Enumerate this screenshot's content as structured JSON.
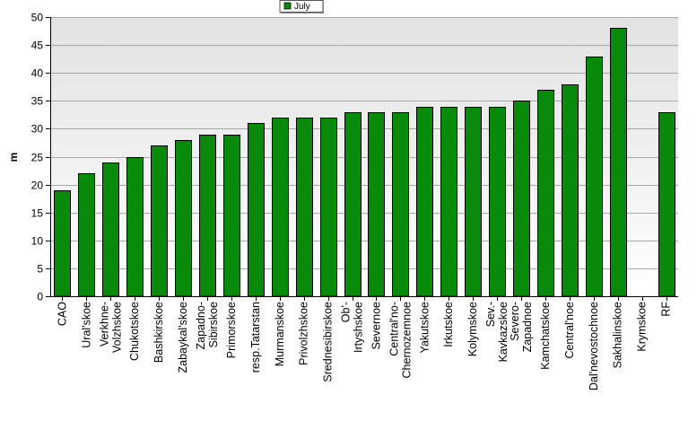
{
  "chart_data": {
    "type": "bar",
    "ylabel": "m",
    "xlabel": "",
    "ylim": [
      0,
      50
    ],
    "yticks": [
      0,
      5,
      10,
      15,
      20,
      25,
      30,
      35,
      40,
      45,
      50
    ],
    "grid": true,
    "legend_position": "top-center",
    "categories": [
      "CAO",
      "Ural'skoe",
      "Verkhne-Volzhskoe",
      "Chukotskoe",
      "Bashkirskoe",
      "Zabaykal'skoe",
      "Zapadno-Sibirskoe",
      "Primorskoe",
      "resp.Tatarstan",
      "Murmanskoe",
      "Privolzhskoe",
      "Srednesibirskoe",
      "Ob'-Irtyshskoe",
      "Severnoe",
      "Central'no-Chernozemnoe",
      "Yakutskoe",
      "Irkutskoe",
      "Kolymskoe",
      "Sev.-Kavkazskoe",
      "Severo-Zapadnoe",
      "Kamchatskoe",
      "Central'noe",
      "Dal'nevostochnoe",
      "Sakhalinskoe",
      "Krymskoe",
      "RF"
    ],
    "category_label_lines": [
      [
        "CAO"
      ],
      [
        "Ural'skoe"
      ],
      [
        "Verkhne-",
        "Volzhskoe"
      ],
      [
        "Chukotskoe"
      ],
      [
        "Bashkirskoe"
      ],
      [
        "Zabaykal'skoe"
      ],
      [
        "Zapadno-",
        "Sibirskoe"
      ],
      [
        "Primorskoe"
      ],
      [
        "resp.Tatarstan"
      ],
      [
        "Murmanskoe"
      ],
      [
        "Privolzhskoe"
      ],
      [
        "Srednesibirskoe"
      ],
      [
        "Ob'-",
        "Irtyshskoe"
      ],
      [
        "Severnoe"
      ],
      [
        "Central'no-",
        "Chernozemnoe"
      ],
      [
        "Yakutskoe"
      ],
      [
        "Irkutskoe"
      ],
      [
        "Kolymskoe"
      ],
      [
        "Sev.-",
        "Kavkazskoe"
      ],
      [
        "Severo-",
        "Zapadnoe"
      ],
      [
        "Kamchatskoe"
      ],
      [
        "Central'noe"
      ],
      [
        "Dal'nevostochnoe"
      ],
      [
        "Sakhalinskoe"
      ],
      [
        "Krymskoe"
      ],
      [
        "RF"
      ]
    ],
    "series": [
      {
        "name": "July",
        "color": "#0a8a0a",
        "values": [
          19,
          22,
          24,
          25,
          27,
          28,
          29,
          29,
          31,
          32,
          32,
          32,
          33,
          33,
          33,
          34,
          34,
          34,
          34,
          35,
          37,
          38,
          43,
          48,
          null,
          33
        ]
      }
    ]
  }
}
